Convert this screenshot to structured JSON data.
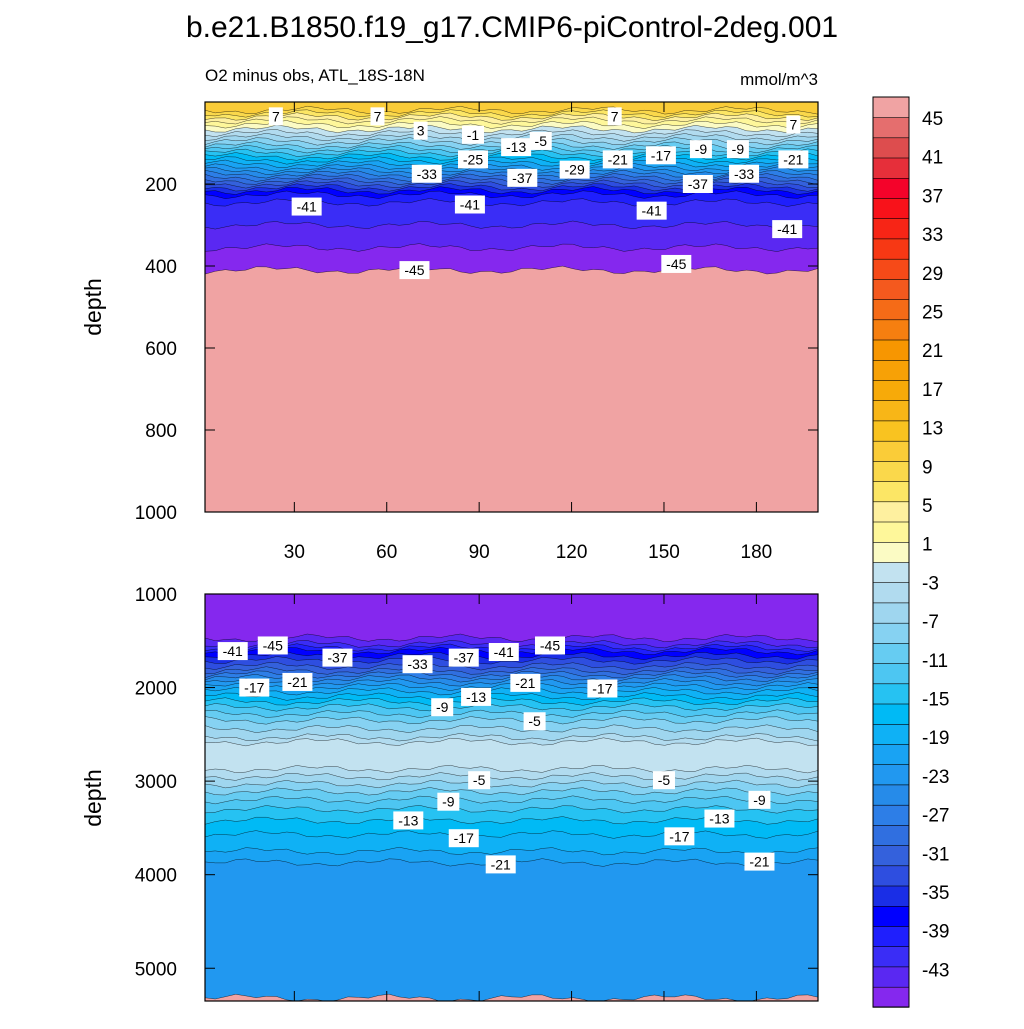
{
  "chart_data": {
    "type": "heatmap",
    "title": "b.e21.B1850.f19_g17.CMIP6-piControl-2deg.001",
    "subtitle": "O2 minus obs, ATL_18S-18N",
    "units": "mmol/m^3",
    "colorbar": {
      "levels": [
        -45,
        -43,
        -41,
        -39,
        -37,
        -35,
        -33,
        -31,
        -29,
        -27,
        -25,
        -23,
        -21,
        -19,
        -17,
        -15,
        -13,
        -11,
        -9,
        -7,
        -5,
        -3,
        -1,
        1,
        3,
        5,
        7,
        9,
        11,
        13,
        15,
        17,
        19,
        21,
        23,
        25,
        27,
        29,
        31,
        33,
        35,
        37,
        39,
        41,
        43,
        45
      ],
      "labels": [
        "45",
        "41",
        "37",
        "33",
        "29",
        "25",
        "21",
        "17",
        "13",
        "9",
        "5",
        "1",
        "-3",
        "-7",
        "-11",
        "-15",
        "-19",
        "-23",
        "-27",
        "-31",
        "-35",
        "-39",
        "-43"
      ]
    },
    "panels": [
      {
        "name": "upper",
        "ylabel": "depth",
        "xlim": [
          1,
          200
        ],
        "ylim": [
          1000,
          0
        ],
        "xticks": [
          30,
          60,
          90,
          120,
          150,
          180
        ],
        "xtick_labels": [
          "30",
          "60",
          "90",
          "120",
          "150",
          "180"
        ],
        "yticks": [
          200,
          400,
          600,
          800,
          1000
        ],
        "ytick_labels": [
          "200",
          "400",
          "600",
          "800",
          "1000"
        ],
        "contour_labels": [
          {
            "text": "7",
            "x": 24,
            "y": 35
          },
          {
            "text": "7",
            "x": 57,
            "y": 35
          },
          {
            "text": "7",
            "x": 134,
            "y": 35
          },
          {
            "text": "7",
            "x": 192,
            "y": 55
          },
          {
            "text": "3",
            "x": 71,
            "y": 70
          },
          {
            "text": "-1",
            "x": 88,
            "y": 80
          },
          {
            "text": "-5",
            "x": 110,
            "y": 95
          },
          {
            "text": "-13",
            "x": 102,
            "y": 110
          },
          {
            "text": "-25",
            "x": 88,
            "y": 140
          },
          {
            "text": "-33",
            "x": 73,
            "y": 175
          },
          {
            "text": "-29",
            "x": 121,
            "y": 165
          },
          {
            "text": "-21",
            "x": 135,
            "y": 140
          },
          {
            "text": "-17",
            "x": 149,
            "y": 130
          },
          {
            "text": "-9",
            "x": 162,
            "y": 115
          },
          {
            "text": "-9",
            "x": 174,
            "y": 115
          },
          {
            "text": "-21",
            "x": 192,
            "y": 140
          },
          {
            "text": "-33",
            "x": 176,
            "y": 175
          },
          {
            "text": "-37",
            "x": 104,
            "y": 185
          },
          {
            "text": "-37",
            "x": 161,
            "y": 200
          },
          {
            "text": "-41",
            "x": 34,
            "y": 255
          },
          {
            "text": "-41",
            "x": 87,
            "y": 250
          },
          {
            "text": "-41",
            "x": 146,
            "y": 265
          },
          {
            "text": "-41",
            "x": 190,
            "y": 310
          },
          {
            "text": "-45",
            "x": 69,
            "y": 410
          },
          {
            "text": "-45",
            "x": 154,
            "y": 395
          }
        ]
      },
      {
        "name": "lower",
        "ylabel": "depth",
        "xlim": [
          1,
          200
        ],
        "ylim": [
          5350,
          1000
        ],
        "yticks": [
          1000,
          2000,
          3000,
          4000,
          5000
        ],
        "ytick_labels": [
          "1000",
          "2000",
          "3000",
          "4000",
          "5000"
        ],
        "contour_labels": [
          {
            "text": "-41",
            "x": 10,
            "y": 1610
          },
          {
            "text": "-45",
            "x": 23,
            "y": 1550
          },
          {
            "text": "-37",
            "x": 44,
            "y": 1680
          },
          {
            "text": "-33",
            "x": 70,
            "y": 1750
          },
          {
            "text": "-37",
            "x": 85,
            "y": 1680
          },
          {
            "text": "-41",
            "x": 98,
            "y": 1620
          },
          {
            "text": "-45",
            "x": 113,
            "y": 1550
          },
          {
            "text": "-17",
            "x": 17,
            "y": 2000
          },
          {
            "text": "-21",
            "x": 31,
            "y": 1940
          },
          {
            "text": "-21",
            "x": 105,
            "y": 1950
          },
          {
            "text": "-17",
            "x": 130,
            "y": 2010
          },
          {
            "text": "-13",
            "x": 89,
            "y": 2100
          },
          {
            "text": "-9",
            "x": 78,
            "y": 2210
          },
          {
            "text": "-5",
            "x": 108,
            "y": 2360
          },
          {
            "text": "-5",
            "x": 90,
            "y": 2990
          },
          {
            "text": "-5",
            "x": 150,
            "y": 2990
          },
          {
            "text": "-9",
            "x": 80,
            "y": 3220
          },
          {
            "text": "-9",
            "x": 181,
            "y": 3200
          },
          {
            "text": "-13",
            "x": 67,
            "y": 3420
          },
          {
            "text": "-13",
            "x": 168,
            "y": 3400
          },
          {
            "text": "-17",
            "x": 85,
            "y": 3610
          },
          {
            "text": "-17",
            "x": 155,
            "y": 3590
          },
          {
            "text": "-21",
            "x": 97,
            "y": 3890
          },
          {
            "text": "-21",
            "x": 181,
            "y": 3860
          }
        ]
      }
    ]
  }
}
